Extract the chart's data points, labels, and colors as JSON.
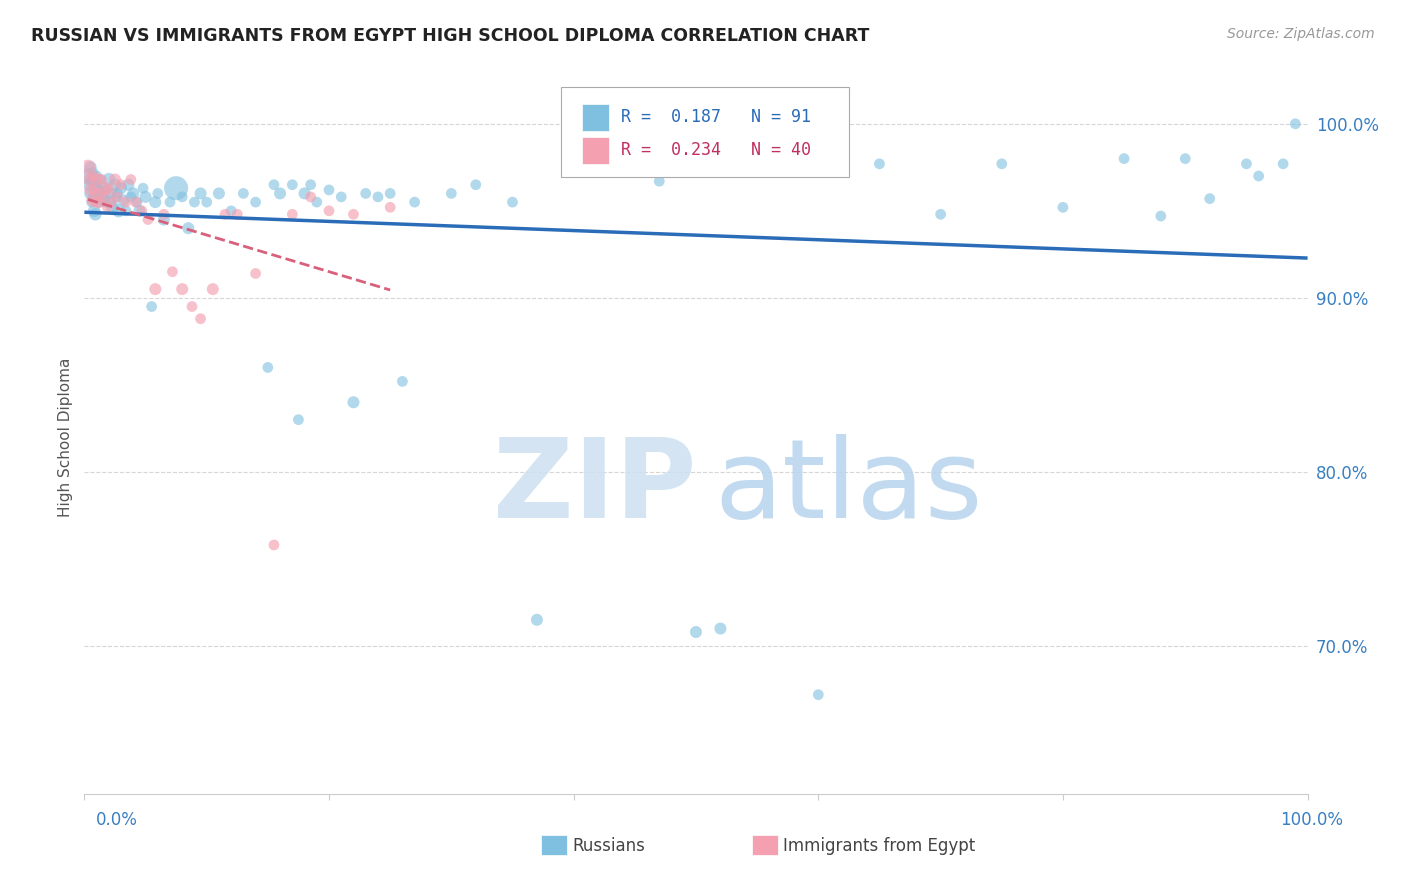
{
  "title": "RUSSIAN VS IMMIGRANTS FROM EGYPT HIGH SCHOOL DIPLOMA CORRELATION CHART",
  "source": "Source: ZipAtlas.com",
  "ylabel": "High School Diploma",
  "r_russian": 0.187,
  "n_russian": 91,
  "r_egypt": 0.234,
  "n_egypt": 40,
  "blue_color": "#7fbfdf",
  "pink_color": "#f4a0b0",
  "blue_line_color": "#2b6cb8",
  "pink_line_color": "#d9607a",
  "ytick_labels": [
    "100.0%",
    "90.0%",
    "80.0%",
    "70.0%"
  ],
  "ytick_values": [
    1.0,
    0.9,
    0.8,
    0.7
  ],
  "xlim": [
    0.0,
    1.0
  ],
  "ylim": [
    0.615,
    1.025
  ],
  "russians_x": [
    0.003,
    0.004,
    0.005,
    0.005,
    0.006,
    0.006,
    0.007,
    0.007,
    0.008,
    0.008,
    0.009,
    0.009,
    0.01,
    0.01,
    0.011,
    0.012,
    0.013,
    0.014,
    0.015,
    0.016,
    0.017,
    0.018,
    0.02,
    0.021,
    0.022,
    0.023,
    0.025,
    0.026,
    0.027,
    0.028,
    0.03,
    0.032,
    0.034,
    0.036,
    0.038,
    0.04,
    0.043,
    0.045,
    0.048,
    0.05,
    0.055,
    0.058,
    0.06,
    0.065,
    0.07,
    0.075,
    0.08,
    0.085,
    0.09,
    0.095,
    0.1,
    0.11,
    0.12,
    0.13,
    0.14,
    0.15,
    0.155,
    0.16,
    0.17,
    0.175,
    0.18,
    0.185,
    0.19,
    0.2,
    0.21,
    0.22,
    0.23,
    0.24,
    0.25,
    0.26,
    0.27,
    0.3,
    0.32,
    0.35,
    0.37,
    0.47,
    0.5,
    0.52,
    0.6,
    0.65,
    0.7,
    0.75,
    0.8,
    0.85,
    0.88,
    0.9,
    0.92,
    0.95,
    0.96,
    0.98,
    0.99
  ],
  "russians_y": [
    0.97,
    0.965,
    0.975,
    0.96,
    0.968,
    0.955,
    0.972,
    0.958,
    0.966,
    0.95,
    0.964,
    0.948,
    0.97,
    0.958,
    0.962,
    0.955,
    0.968,
    0.96,
    0.963,
    0.957,
    0.955,
    0.962,
    0.968,
    0.955,
    0.96,
    0.952,
    0.965,
    0.958,
    0.96,
    0.95,
    0.963,
    0.956,
    0.95,
    0.965,
    0.958,
    0.96,
    0.955,
    0.95,
    0.963,
    0.958,
    0.895,
    0.955,
    0.96,
    0.945,
    0.955,
    0.963,
    0.958,
    0.94,
    0.955,
    0.96,
    0.955,
    0.96,
    0.95,
    0.96,
    0.955,
    0.86,
    0.965,
    0.96,
    0.965,
    0.83,
    0.96,
    0.965,
    0.955,
    0.962,
    0.958,
    0.84,
    0.96,
    0.958,
    0.96,
    0.852,
    0.955,
    0.96,
    0.965,
    0.955,
    0.715,
    0.967,
    0.708,
    0.71,
    0.672,
    0.977,
    0.948,
    0.977,
    0.952,
    0.98,
    0.947,
    0.98,
    0.957,
    0.977,
    0.97,
    0.977,
    1.0
  ],
  "russians_size": [
    120,
    80,
    80,
    80,
    80,
    60,
    60,
    60,
    100,
    80,
    80,
    80,
    60,
    60,
    60,
    60,
    60,
    90,
    75,
    75,
    60,
    60,
    90,
    75,
    60,
    90,
    75,
    60,
    60,
    90,
    75,
    75,
    60,
    75,
    60,
    75,
    60,
    75,
    60,
    75,
    60,
    75,
    60,
    75,
    60,
    300,
    60,
    75,
    60,
    75,
    60,
    75,
    60,
    60,
    60,
    60,
    60,
    75,
    60,
    60,
    75,
    60,
    60,
    60,
    60,
    75,
    60,
    60,
    60,
    60,
    60,
    60,
    60,
    60,
    75,
    60,
    75,
    75,
    60,
    60,
    60,
    60,
    60,
    60,
    60,
    60,
    60,
    60,
    60,
    60,
    60
  ],
  "egypt_x": [
    0.003,
    0.004,
    0.005,
    0.006,
    0.007,
    0.008,
    0.009,
    0.01,
    0.011,
    0.012,
    0.014,
    0.015,
    0.017,
    0.019,
    0.02,
    0.022,
    0.025,
    0.027,
    0.03,
    0.034,
    0.038,
    0.042,
    0.047,
    0.052,
    0.058,
    0.065,
    0.072,
    0.08,
    0.088,
    0.095,
    0.105,
    0.115,
    0.125,
    0.14,
    0.155,
    0.17,
    0.185,
    0.2,
    0.22,
    0.25
  ],
  "egypt_y": [
    0.975,
    0.968,
    0.962,
    0.956,
    0.97,
    0.962,
    0.955,
    0.968,
    0.96,
    0.955,
    0.968,
    0.958,
    0.963,
    0.952,
    0.962,
    0.955,
    0.968,
    0.958,
    0.965,
    0.955,
    0.968,
    0.955,
    0.95,
    0.945,
    0.905,
    0.948,
    0.915,
    0.905,
    0.895,
    0.888,
    0.905,
    0.948,
    0.948,
    0.914,
    0.758,
    0.948,
    0.958,
    0.95,
    0.948,
    0.952
  ],
  "egypt_size": [
    120,
    80,
    80,
    60,
    60,
    60,
    60,
    90,
    75,
    75,
    60,
    60,
    90,
    60,
    75,
    60,
    75,
    60,
    60,
    60,
    60,
    60,
    60,
    60,
    75,
    60,
    60,
    75,
    60,
    60,
    75,
    60,
    60,
    60,
    60,
    60,
    60,
    60,
    60,
    60
  ],
  "grid_color": "#cccccc",
  "background_color": "#ffffff",
  "watermark_color_zip": "#cde0f0",
  "watermark_color_atlas": "#b8d4ee"
}
